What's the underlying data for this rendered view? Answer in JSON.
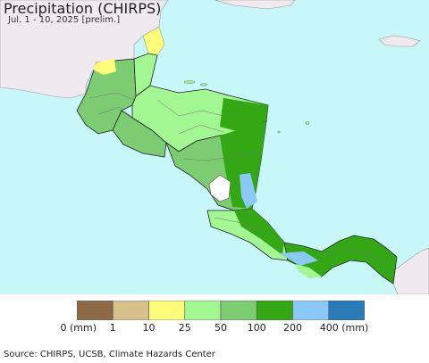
{
  "title": "Precipitation (CHIRPS)",
  "subtitle": "Jul. 1 - 10, 2025 [prelim.]",
  "source": "Source: CHIRPS, UCSB, Climate Hazards Center",
  "colors": {
    "ocean": "#c8f7fa",
    "outside_land": "#f0eaf0",
    "border": "#222222",
    "admin_border": "#777777"
  },
  "legend": {
    "items": [
      {
        "label": "0 (mm)",
        "color": "#8b6a45"
      },
      {
        "label": "1",
        "color": "#d6c08c"
      },
      {
        "label": "10",
        "color": "#fdfd7a"
      },
      {
        "label": "25",
        "color": "#a2f793"
      },
      {
        "label": "50",
        "color": "#7ccd72"
      },
      {
        "label": "100",
        "color": "#33a814"
      },
      {
        "label": "200",
        "color": "#8ac8f8"
      },
      {
        "label": "400 (mm)",
        "color": "#2a7ab8"
      }
    ]
  }
}
